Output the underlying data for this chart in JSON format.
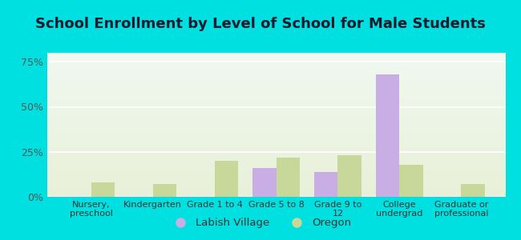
{
  "title": "School Enrollment by Level of School for Male Students",
  "categories": [
    "Nursery,\npreschool",
    "Kindergarten",
    "Grade 1 to 4",
    "Grade 5 to 8",
    "Grade 9 to\n12",
    "College\nundergrad",
    "Graduate or\nprofessional"
  ],
  "labish_village": [
    0,
    0,
    0,
    16,
    14,
    68,
    0
  ],
  "oregon": [
    8,
    7,
    20,
    22,
    23,
    18,
    7
  ],
  "labish_color": "#c9aee5",
  "oregon_color": "#c8d89a",
  "background_outer": "#00e0e0",
  "grid_color": "#ffffff",
  "ylim": [
    0,
    80
  ],
  "yticks": [
    0,
    25,
    50,
    75
  ],
  "ytick_labels": [
    "0%",
    "25%",
    "50%",
    "75%"
  ],
  "title_fontsize": 13,
  "title_color": "#1a1a2e",
  "ytick_color": "#555555",
  "xtick_color": "#333333",
  "legend_labels": [
    "Labish Village",
    "Oregon"
  ],
  "bar_width": 0.38
}
